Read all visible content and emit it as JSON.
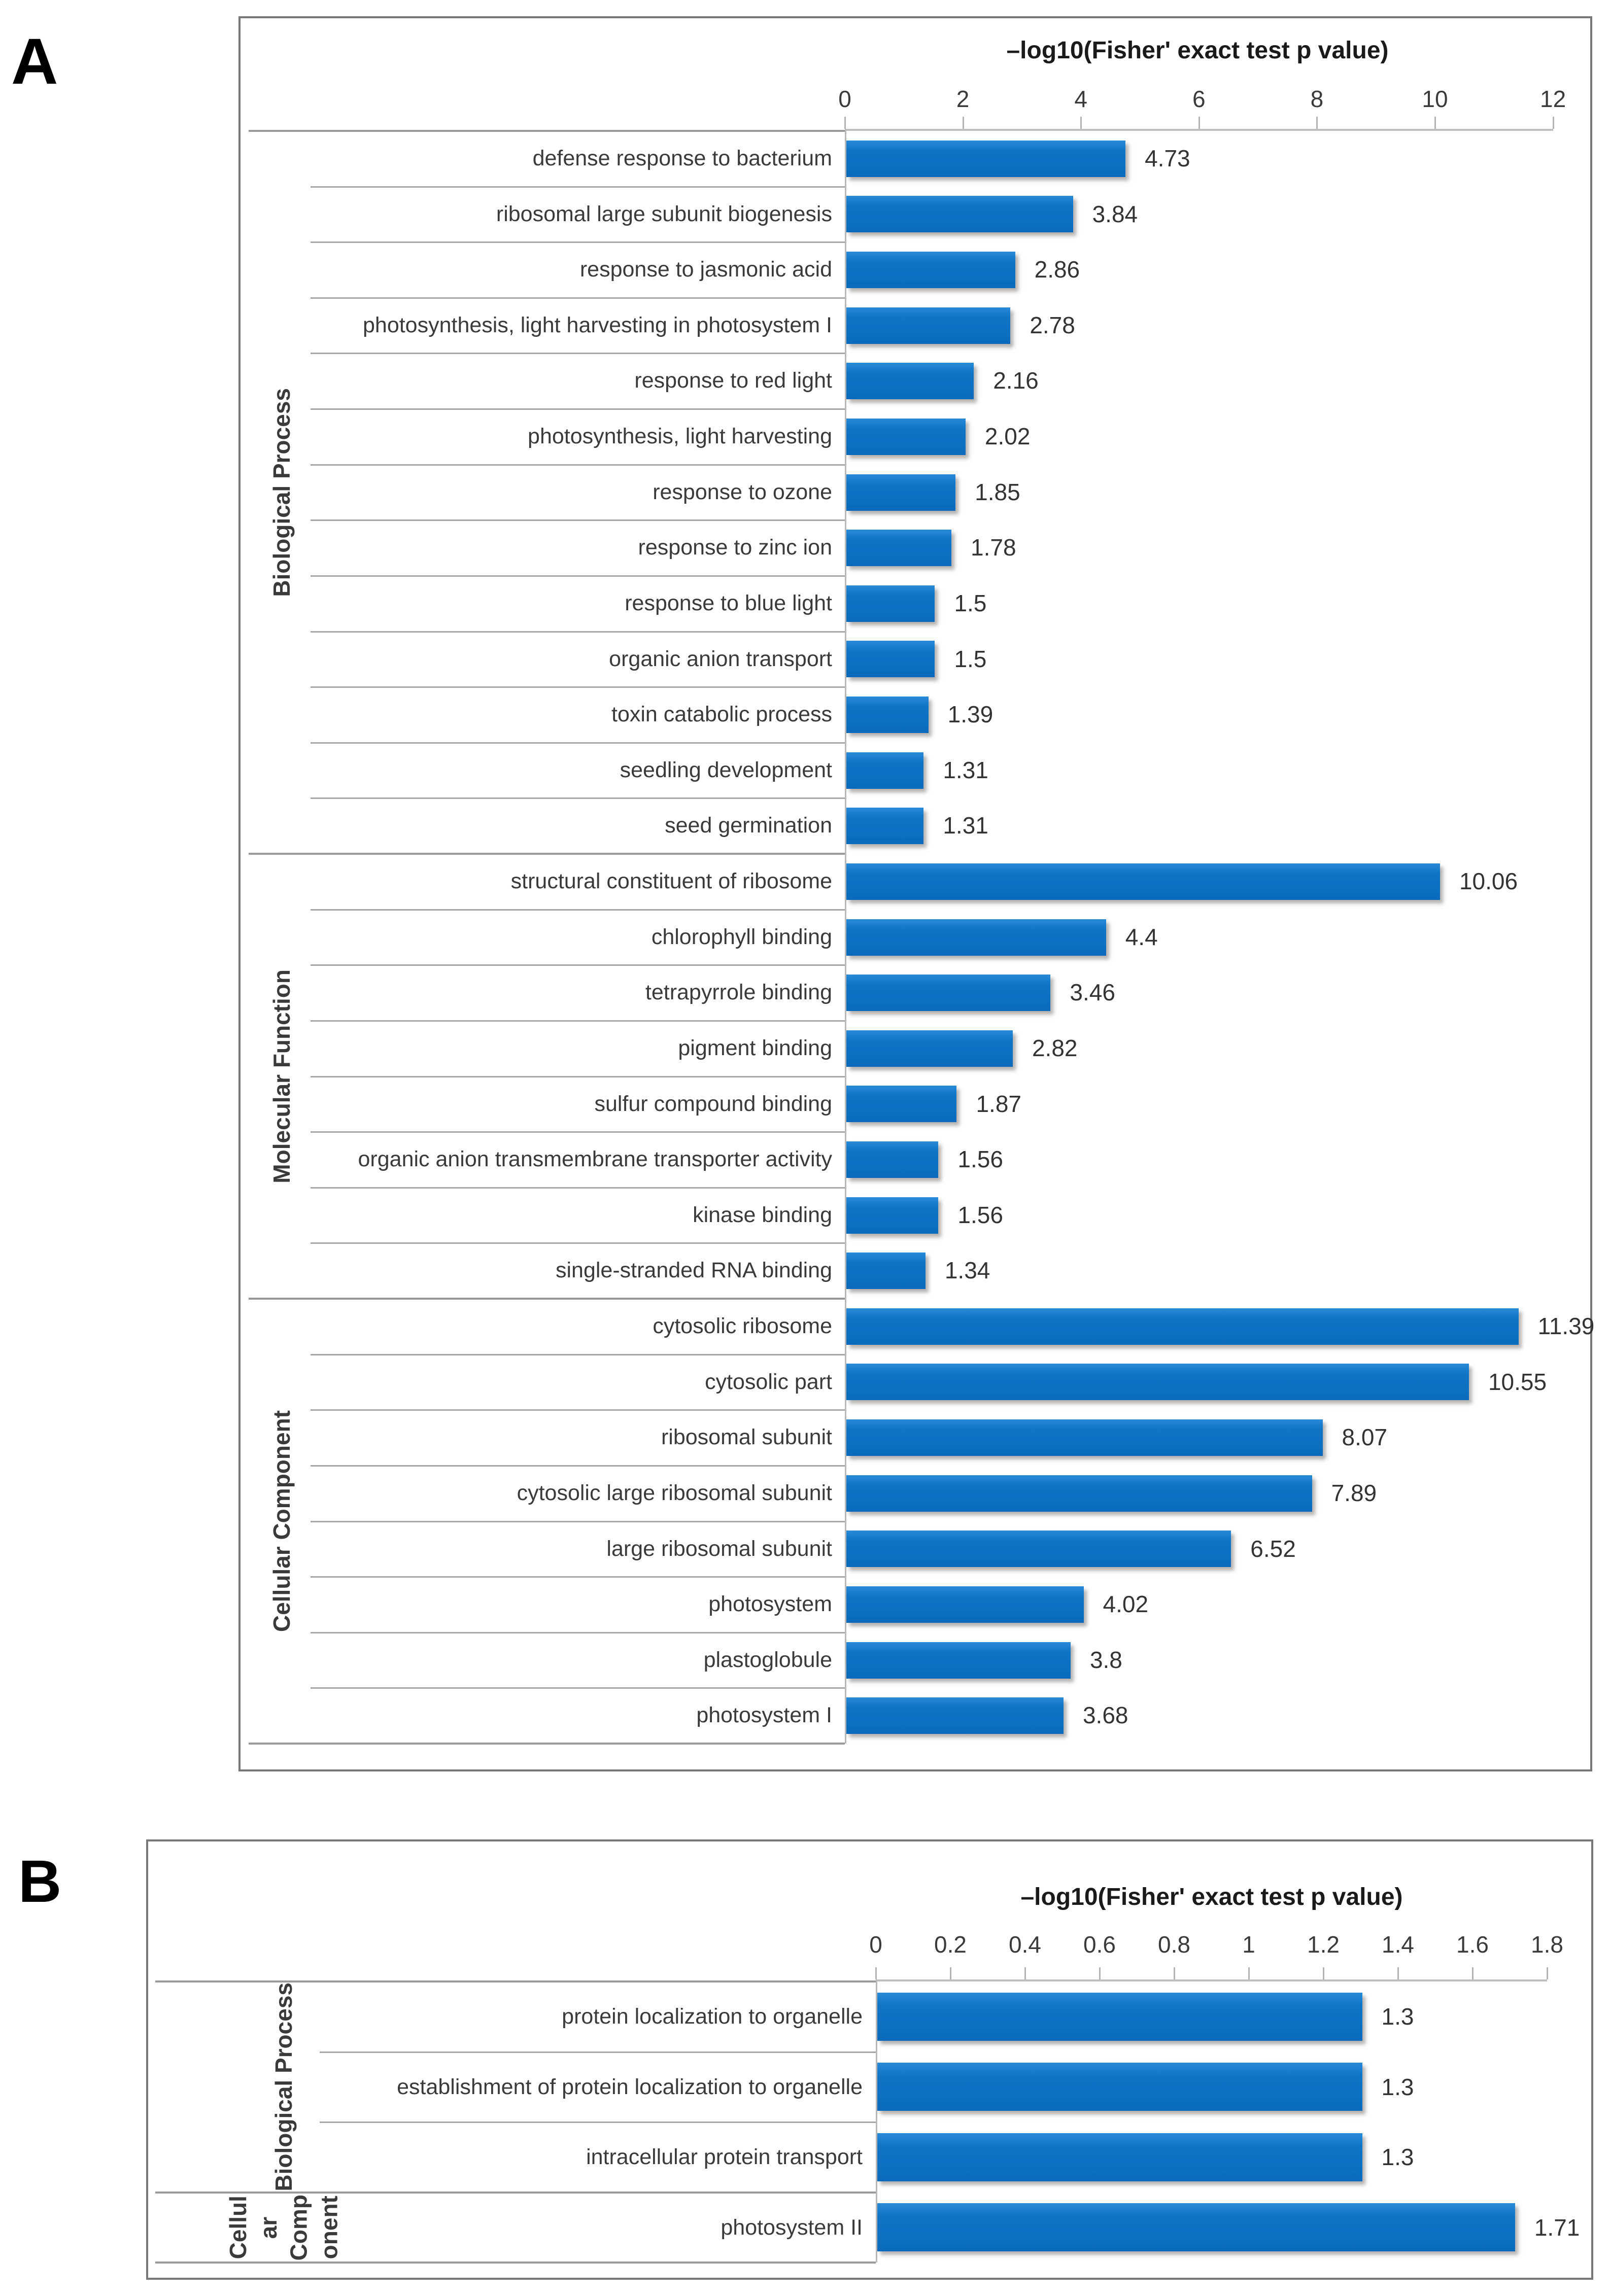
{
  "figure": {
    "background": "#ffffff",
    "bar_color": "#0b6fc2",
    "panel_a_letter": "A",
    "panel_b_letter": "B"
  },
  "chart_data": [
    {
      "type": "bar",
      "orientation": "horizontal",
      "panel_label": "A",
      "xlabel": "–log10(Fisher' exact test p value)",
      "xlim": [
        0,
        12
      ],
      "xticks": [
        0,
        2,
        4,
        6,
        8,
        10,
        12
      ],
      "grid": false,
      "value_labels": true,
      "bar_color": "#0b6fc2",
      "groups": [
        {
          "group": "Biological Process",
          "group_display": "Biological Process",
          "categories": [
            "defense response to bacterium",
            "ribosomal large subunit biogenesis",
            "response to jasmonic acid",
            "photosynthesis, light harvesting in photosystem I",
            "response to red light",
            "photosynthesis, light harvesting",
            "response to ozone",
            "response to zinc ion",
            "response to blue light",
            "organic anion transport",
            "toxin catabolic process",
            "seedling development",
            "seed germination"
          ],
          "values": [
            4.73,
            3.84,
            2.86,
            2.78,
            2.16,
            2.02,
            1.85,
            1.78,
            1.5,
            1.5,
            1.39,
            1.31,
            1.31
          ]
        },
        {
          "group": "Molecular Function",
          "group_display": "Molecular Function",
          "categories": [
            "structural constituent of ribosome",
            "chlorophyll binding",
            "tetrapyrrole binding",
            "pigment binding",
            "sulfur compound binding",
            "organic anion transmembrane transporter activity",
            "kinase binding",
            "single-stranded RNA binding"
          ],
          "values": [
            10.06,
            4.4,
            3.46,
            2.82,
            1.87,
            1.56,
            1.56,
            1.34
          ]
        },
        {
          "group": "Cellular Component",
          "group_display": "Cellular Component",
          "categories": [
            "cytosolic ribosome",
            "cytosolic part",
            "ribosomal subunit",
            "cytosolic large ribosomal subunit",
            "large ribosomal subunit",
            "photosystem",
            "plastoglobule",
            "photosystem I"
          ],
          "values": [
            11.39,
            10.55,
            8.07,
            7.89,
            6.52,
            4.02,
            3.8,
            3.68
          ]
        }
      ]
    },
    {
      "type": "bar",
      "orientation": "horizontal",
      "panel_label": "B",
      "xlabel": "–log10(Fisher' exact test p value)",
      "xlim": [
        0,
        1.8
      ],
      "xticks": [
        0,
        0.2,
        0.4,
        0.6,
        0.8,
        1,
        1.2,
        1.4,
        1.6,
        1.8
      ],
      "grid": false,
      "value_labels": true,
      "bar_color": "#0b6fc2",
      "groups": [
        {
          "group": "Biological Process",
          "group_display": "Biological Process",
          "categories": [
            "protein localization to organelle",
            "establishment of protein localization to organelle",
            "intracellular protein transport"
          ],
          "values": [
            1.3,
            1.3,
            1.3
          ]
        },
        {
          "group": "Cellular Component",
          "group_display": "Cellul\nar\nComp\nonent",
          "categories": [
            "photosystem II"
          ],
          "values": [
            1.71
          ]
        }
      ]
    }
  ]
}
